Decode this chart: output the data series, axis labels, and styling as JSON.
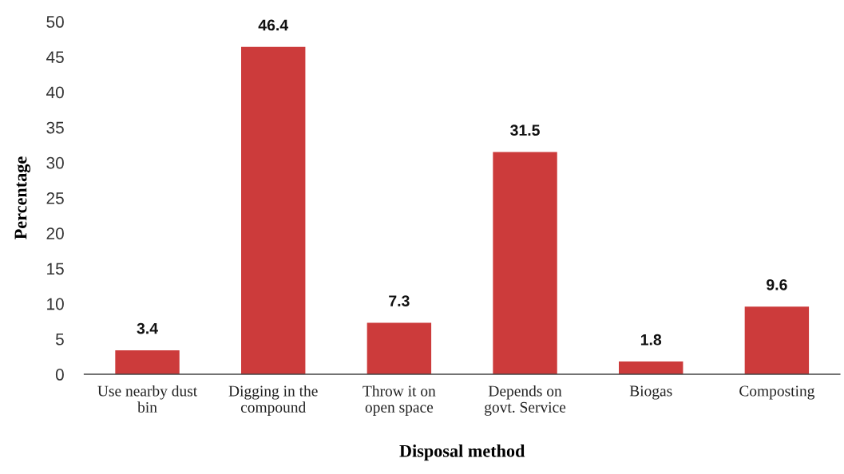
{
  "chart_data": {
    "type": "bar",
    "xlabel": "Disposal method",
    "ylabel": "Percentage",
    "categories": [
      "Use nearby dust\nbin",
      "Digging in the\ncompound",
      "Throw it on\nopen space",
      "Depends on\ngovt. Service",
      "Biogas",
      "Composting"
    ],
    "values": [
      3.4,
      46.4,
      7.3,
      31.5,
      1.8,
      9.6
    ],
    "color": "#cc3b3b",
    "ylim": [
      0,
      50
    ],
    "yticks": [
      0,
      5,
      10,
      15,
      20,
      25,
      30,
      35,
      40,
      45,
      50
    ],
    "data_labels": true
  }
}
